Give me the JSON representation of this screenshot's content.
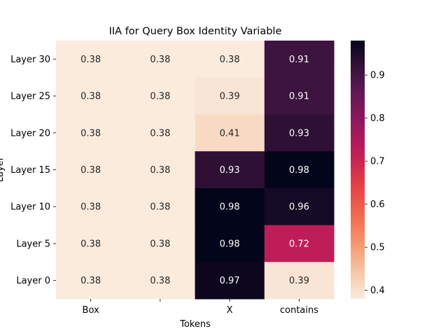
{
  "chart_data": {
    "type": "heatmap",
    "title": "IIA for Query Box Identity Variable",
    "xlabel": "Tokens",
    "ylabel": "Layer",
    "x_categories": [
      "Box",
      "",
      "X",
      "contains"
    ],
    "y_categories": [
      "Layer 30",
      "Layer 25",
      "Layer 20",
      "Layer 15",
      "Layer 10",
      "Layer 5",
      "Layer 0"
    ],
    "values": [
      [
        0.38,
        0.38,
        0.38,
        0.91
      ],
      [
        0.38,
        0.38,
        0.39,
        0.91
      ],
      [
        0.38,
        0.38,
        0.41,
        0.93
      ],
      [
        0.38,
        0.38,
        0.93,
        0.98
      ],
      [
        0.38,
        0.38,
        0.98,
        0.96
      ],
      [
        0.38,
        0.38,
        0.98,
        0.72
      ],
      [
        0.38,
        0.38,
        0.97,
        0.39
      ]
    ],
    "value_labels": [
      [
        "0.38",
        "0.38",
        "0.38",
        "0.91"
      ],
      [
        "0.38",
        "0.38",
        "0.39",
        "0.91"
      ],
      [
        "0.38",
        "0.38",
        "0.41",
        "0.93"
      ],
      [
        "0.38",
        "0.38",
        "0.93",
        "0.98"
      ],
      [
        "0.38",
        "0.38",
        "0.98",
        "0.96"
      ],
      [
        "0.38",
        "0.38",
        "0.98",
        "0.72"
      ],
      [
        "0.38",
        "0.38",
        "0.97",
        "0.39"
      ]
    ],
    "colorbar": {
      "range": [
        0.38,
        0.98
      ],
      "ticks": [
        "0.4",
        "0.5",
        "0.6",
        "0.7",
        "0.8",
        "0.9"
      ],
      "colormap": "rocket_r"
    },
    "grid": false
  }
}
